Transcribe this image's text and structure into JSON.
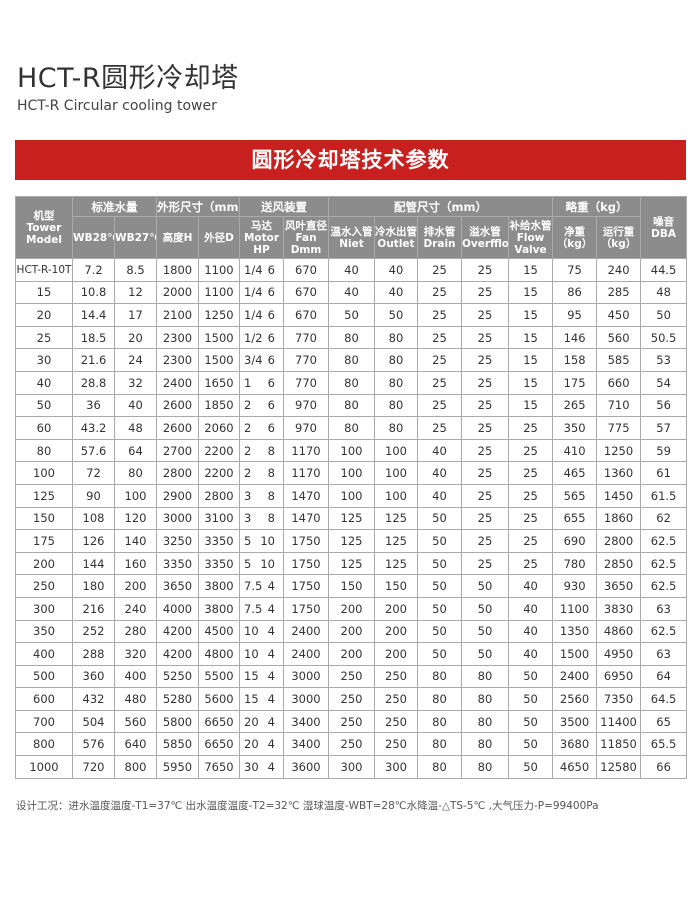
{
  "title_cn": "HCT-R圆形冷却塔",
  "title_en": "HCT-R Circular cooling tower",
  "banner": "圆形冷却塔技术参数",
  "colors": {
    "banner": "#c8201f",
    "header_bg": "#8c8c8c"
  },
  "header": {
    "model": "机型\nTower\nModel",
    "water": "标准水量",
    "dims": "外形尺寸（mm）",
    "fan": "送风装置",
    "pipes": "配管尺寸（mm）",
    "weight": "略重（kg）",
    "noise": "噪音\nDBA",
    "wb28": "WB28℃",
    "wb27": "WB27℃",
    "height": "高度H",
    "dia": "外径D",
    "motor": "马达\nMotor HP",
    "fandia": "风叶直径\nFan Dmm",
    "inlet": "温水入管\nNiet",
    "outlet": "冷水出管\nOutlet",
    "drain": "排水管\nDrain",
    "overflow": "溢水管\nOverfflow",
    "valve": "补给水管\nFlow\nValve",
    "net": "净重\n（kg）",
    "run": "运行重\n（kg）"
  },
  "rows": [
    [
      "HCT-R-10T",
      "7.2",
      "8.5",
      "1800",
      "1100",
      "1/4",
      "6",
      "670",
      "40",
      "40",
      "25",
      "25",
      "15",
      "75",
      "240",
      "44.5"
    ],
    [
      "15",
      "10.8",
      "12",
      "2000",
      "1100",
      "1/4",
      "6",
      "670",
      "40",
      "40",
      "25",
      "25",
      "15",
      "86",
      "285",
      "48"
    ],
    [
      "20",
      "14.4",
      "17",
      "2100",
      "1250",
      "1/4",
      "6",
      "670",
      "50",
      "50",
      "25",
      "25",
      "15",
      "95",
      "450",
      "50"
    ],
    [
      "25",
      "18.5",
      "20",
      "2300",
      "1500",
      "1/2",
      "6",
      "770",
      "80",
      "80",
      "25",
      "25",
      "15",
      "146",
      "560",
      "50.5"
    ],
    [
      "30",
      "21.6",
      "24",
      "2300",
      "1500",
      "3/4",
      "6",
      "770",
      "80",
      "80",
      "25",
      "25",
      "15",
      "158",
      "585",
      "53"
    ],
    [
      "40",
      "28.8",
      "32",
      "2400",
      "1650",
      "1",
      "6",
      "770",
      "80",
      "80",
      "25",
      "25",
      "15",
      "175",
      "660",
      "54"
    ],
    [
      "50",
      "36",
      "40",
      "2600",
      "1850",
      "2",
      "6",
      "970",
      "80",
      "80",
      "25",
      "25",
      "15",
      "265",
      "710",
      "56"
    ],
    [
      "60",
      "43.2",
      "48",
      "2600",
      "2060",
      "2",
      "6",
      "970",
      "80",
      "80",
      "25",
      "25",
      "25",
      "350",
      "775",
      "57"
    ],
    [
      "80",
      "57.6",
      "64",
      "2700",
      "2200",
      "2",
      "8",
      "1170",
      "100",
      "100",
      "40",
      "25",
      "25",
      "410",
      "1250",
      "59"
    ],
    [
      "100",
      "72",
      "80",
      "2800",
      "2200",
      "2",
      "8",
      "1170",
      "100",
      "100",
      "40",
      "25",
      "25",
      "465",
      "1360",
      "61"
    ],
    [
      "125",
      "90",
      "100",
      "2900",
      "2800",
      "3",
      "8",
      "1470",
      "100",
      "100",
      "40",
      "25",
      "25",
      "565",
      "1450",
      "61.5"
    ],
    [
      "150",
      "108",
      "120",
      "3000",
      "3100",
      "3",
      "8",
      "1470",
      "125",
      "125",
      "50",
      "25",
      "25",
      "655",
      "1860",
      "62"
    ],
    [
      "175",
      "126",
      "140",
      "3250",
      "3350",
      "5",
      "10",
      "1750",
      "125",
      "125",
      "50",
      "25",
      "25",
      "690",
      "2800",
      "62.5"
    ],
    [
      "200",
      "144",
      "160",
      "3350",
      "3350",
      "5",
      "10",
      "1750",
      "125",
      "125",
      "50",
      "25",
      "25",
      "780",
      "2850",
      "62.5"
    ],
    [
      "250",
      "180",
      "200",
      "3650",
      "3800",
      "7.5",
      "4",
      "1750",
      "150",
      "150",
      "50",
      "50",
      "40",
      "930",
      "3650",
      "62.5"
    ],
    [
      "300",
      "216",
      "240",
      "4000",
      "3800",
      "7.5",
      "4",
      "1750",
      "200",
      "200",
      "50",
      "50",
      "40",
      "1100",
      "3830",
      "63"
    ],
    [
      "350",
      "252",
      "280",
      "4200",
      "4500",
      "10",
      "4",
      "2400",
      "200",
      "200",
      "50",
      "50",
      "40",
      "1350",
      "4860",
      "62.5"
    ],
    [
      "400",
      "288",
      "320",
      "4200",
      "4800",
      "10",
      "4",
      "2400",
      "200",
      "200",
      "50",
      "50",
      "40",
      "1500",
      "4950",
      "63"
    ],
    [
      "500",
      "360",
      "400",
      "5250",
      "5500",
      "15",
      "4",
      "3000",
      "250",
      "250",
      "80",
      "80",
      "50",
      "2400",
      "6950",
      "64"
    ],
    [
      "600",
      "432",
      "480",
      "5280",
      "5600",
      "15",
      "4",
      "3000",
      "250",
      "250",
      "80",
      "80",
      "50",
      "2560",
      "7350",
      "64.5"
    ],
    [
      "700",
      "504",
      "560",
      "5800",
      "6650",
      "20",
      "4",
      "3400",
      "250",
      "250",
      "80",
      "80",
      "50",
      "3500",
      "11400",
      "65"
    ],
    [
      "800",
      "576",
      "640",
      "5850",
      "6650",
      "20",
      "4",
      "3400",
      "250",
      "250",
      "80",
      "80",
      "50",
      "3680",
      "11850",
      "65.5"
    ],
    [
      "1000",
      "720",
      "800",
      "5950",
      "7650",
      "30",
      "4",
      "3600",
      "300",
      "300",
      "80",
      "80",
      "50",
      "4650",
      "12580",
      "66"
    ]
  ],
  "note": "设计工况：进水温度温度-T1=37℃  出水温度温度-T2=32℃  湿球温度-WBT=28℃水降温-△TS-5℃ ,大气压力-P=99400Pa"
}
